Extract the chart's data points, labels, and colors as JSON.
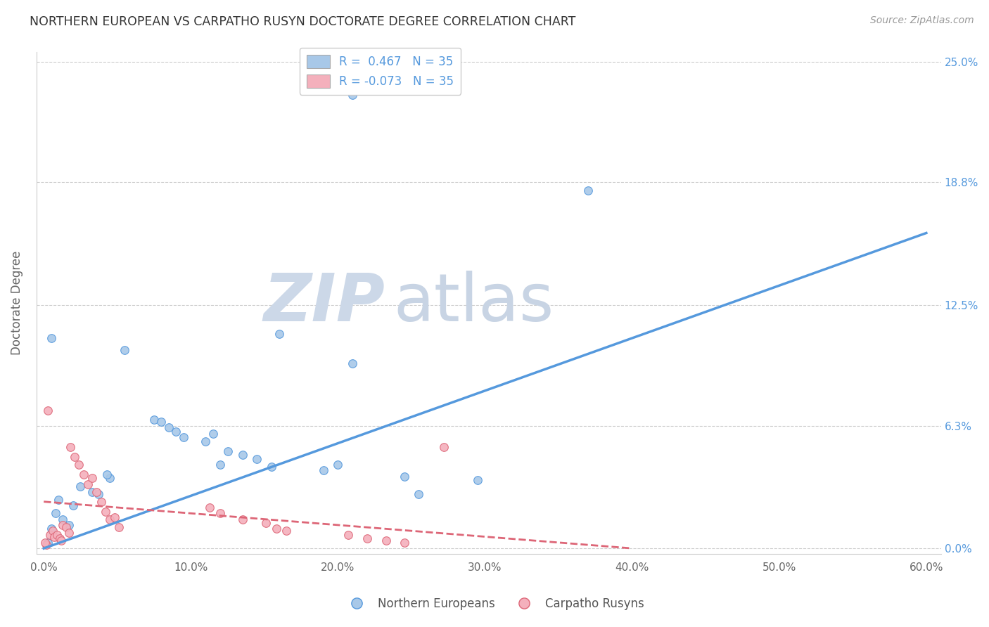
{
  "title": "NORTHERN EUROPEAN VS CARPATHO RUSYN DOCTORATE DEGREE CORRELATION CHART",
  "source": "Source: ZipAtlas.com",
  "ylabel": "Doctorate Degree",
  "xlabel_ticks": [
    "0.0%",
    "10.0%",
    "20.0%",
    "30.0%",
    "40.0%",
    "50.0%",
    "60.0%"
  ],
  "xlabel_vals": [
    0.0,
    0.1,
    0.2,
    0.3,
    0.4,
    0.5,
    0.6
  ],
  "ylabel_ticks": [
    "0.0%",
    "6.3%",
    "12.5%",
    "18.8%",
    "25.0%"
  ],
  "ylabel_vals": [
    0.0,
    0.063,
    0.125,
    0.188,
    0.25
  ],
  "xlim": [
    -0.005,
    0.61
  ],
  "ylim": [
    -0.003,
    0.255
  ],
  "blue_R": "0.467",
  "blue_N": "35",
  "pink_R": "-0.073",
  "pink_N": "35",
  "legend_label_blue": "Northern Europeans",
  "legend_label_pink": "Carpatho Rusyns",
  "blue_color": "#a8c8e8",
  "pink_color": "#f4b0bc",
  "blue_line_color": "#5599dd",
  "pink_line_color": "#dd6677",
  "title_color": "#333333",
  "axis_label_color": "#666666",
  "tick_color_right": "#5599dd",
  "watermark_zip": "ZIP",
  "watermark_atlas": "atlas",
  "blue_scatter_x": [
    0.21,
    0.005,
    0.055,
    0.16,
    0.21,
    0.37,
    0.075,
    0.09,
    0.11,
    0.125,
    0.145,
    0.155,
    0.045,
    0.025,
    0.033,
    0.037,
    0.01,
    0.02,
    0.008,
    0.013,
    0.017,
    0.005,
    0.115,
    0.12,
    0.135,
    0.08,
    0.085,
    0.095,
    0.19,
    0.2,
    0.245,
    0.255,
    0.295,
    0.003,
    0.043
  ],
  "blue_scatter_y": [
    0.233,
    0.108,
    0.102,
    0.11,
    0.095,
    0.184,
    0.066,
    0.06,
    0.055,
    0.05,
    0.046,
    0.042,
    0.036,
    0.032,
    0.029,
    0.028,
    0.025,
    0.022,
    0.018,
    0.015,
    0.012,
    0.01,
    0.059,
    0.043,
    0.048,
    0.065,
    0.062,
    0.057,
    0.04,
    0.043,
    0.037,
    0.028,
    0.035,
    0.003,
    0.038
  ],
  "pink_scatter_x": [
    0.003,
    0.004,
    0.006,
    0.007,
    0.009,
    0.011,
    0.012,
    0.013,
    0.015,
    0.017,
    0.018,
    0.021,
    0.024,
    0.027,
    0.03,
    0.033,
    0.036,
    0.039,
    0.042,
    0.045,
    0.048,
    0.051,
    0.113,
    0.12,
    0.135,
    0.151,
    0.158,
    0.165,
    0.207,
    0.22,
    0.233,
    0.245,
    0.272,
    0.002,
    0.001
  ],
  "pink_scatter_y": [
    0.071,
    0.007,
    0.009,
    0.006,
    0.007,
    0.005,
    0.004,
    0.012,
    0.011,
    0.008,
    0.052,
    0.047,
    0.043,
    0.038,
    0.033,
    0.036,
    0.029,
    0.024,
    0.019,
    0.015,
    0.016,
    0.011,
    0.021,
    0.018,
    0.015,
    0.013,
    0.01,
    0.009,
    0.007,
    0.005,
    0.004,
    0.003,
    0.052,
    0.002,
    0.003
  ],
  "blue_line_x": [
    0.0,
    0.6
  ],
  "blue_line_y": [
    0.0,
    0.162
  ],
  "pink_line_x": [
    0.0,
    0.4
  ],
  "pink_line_y": [
    0.024,
    0.0
  ],
  "marker_size": 70,
  "background_color": "#ffffff",
  "grid_color": "#cccccc",
  "watermark_color_zip": "#ccd8e8",
  "watermark_color_atlas": "#c8d4e4"
}
